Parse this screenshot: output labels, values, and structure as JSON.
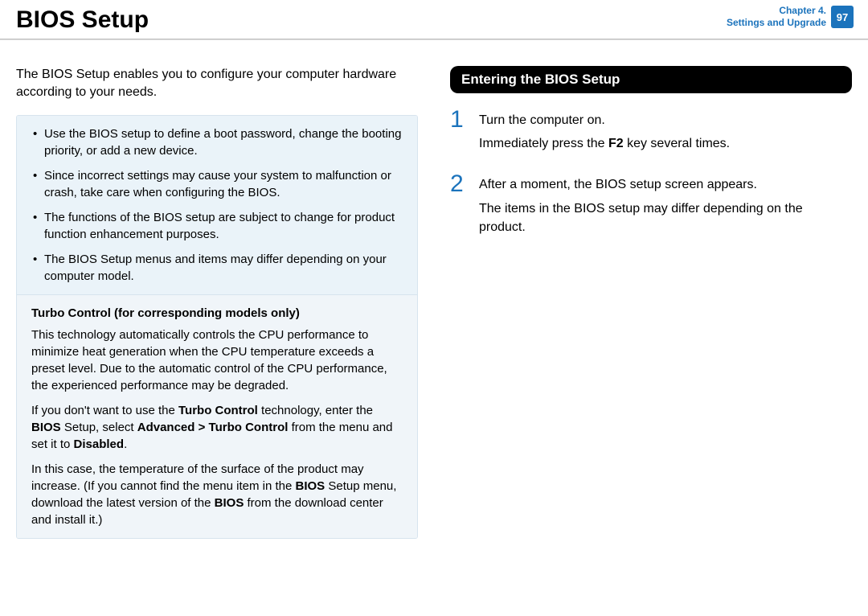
{
  "header": {
    "title": "BIOS Setup",
    "chapter_line1": "Chapter 4.",
    "chapter_line2": "Settings and Upgrade",
    "page_number": "97"
  },
  "colors": {
    "accent": "#1b73bc",
    "box_bg_top": "#eaf3f9",
    "box_bg_bottom": "#f0f5f9",
    "box_border": "#d7e4ee",
    "divider": "#bfbfbf"
  },
  "intro": "The BIOS Setup enables you to configure your computer hardware according to your needs.",
  "bullets": [
    "Use the BIOS setup to define a boot password, change the booting priority, or add a new device.",
    "Since incorrect settings may cause your system to malfunction or crash, take care when configuring the BIOS.",
    "The functions of the BIOS setup are subject to change for product function enhancement purposes.",
    "The BIOS Setup menus and items may differ depending on your computer model."
  ],
  "turbo": {
    "title": "Turbo Control (for corresponding models only)",
    "p1": "This technology automatically controls the CPU performance to minimize heat generation when the CPU temperature exceeds a preset level. Due to the automatic control of the CPU performance, the experienced performance may be degraded.",
    "p2_pre": "If you don't want to use the ",
    "p2_b1": "Turbo Control",
    "p2_mid1": " technology, enter the ",
    "p2_b2": "BIOS",
    "p2_mid2": " Setup, select ",
    "p2_b3": "Advanced > Turbo Control",
    "p2_mid3": " from the menu and set it to ",
    "p2_b4": "Disabled",
    "p2_end": ".",
    "p3_pre": "In this case, the temperature of the surface of the product may increase. (If you cannot find the menu item in the ",
    "p3_b1": "BIOS",
    "p3_mid": " Setup menu, download the latest version of the ",
    "p3_b2": "BIOS",
    "p3_end": " from the download center and install it.)"
  },
  "right": {
    "heading": "Entering the BIOS Setup",
    "steps": [
      {
        "num": "1",
        "line1_pre": "Turn the computer on.",
        "line2_pre": "Immediately press the ",
        "line2_b": "F2",
        "line2_post": " key several times."
      },
      {
        "num": "2",
        "line1": "After a moment, the BIOS setup screen appears.",
        "line2": "The items in the BIOS setup may differ depending on the product."
      }
    ]
  }
}
